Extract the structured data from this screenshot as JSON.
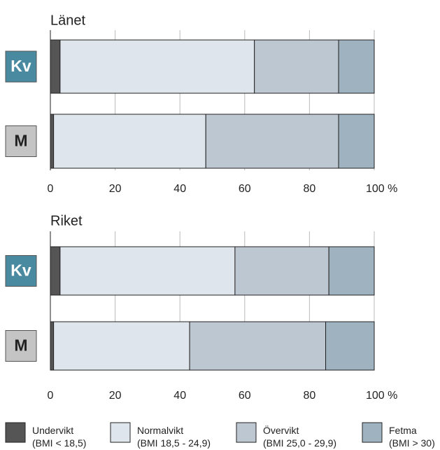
{
  "chart_data": [
    {
      "type": "stacked-bar-horizontal",
      "title": "Länet",
      "categories": [
        "Kv",
        "M"
      ],
      "series": [
        {
          "name": "Undervikt",
          "description": "(BMI < 18,5)",
          "color": "#555555",
          "values": [
            3,
            1
          ]
        },
        {
          "name": "Normalvikt",
          "description": "(BMI 18,5 - 24,9)",
          "color": "#dfe5ec",
          "values": [
            60,
            47
          ]
        },
        {
          "name": "Övervikt",
          "description": "(BMI 25,0 - 29,9)",
          "color": "#bdc7d1",
          "values": [
            26,
            41
          ]
        },
        {
          "name": "Fetma",
          "description": "(BMI > 30)",
          "color": "#9fb2bf",
          "values": [
            11,
            11
          ]
        }
      ],
      "xlim": [
        0,
        100
      ],
      "xticks": [
        0,
        20,
        40,
        60,
        80,
        {
          "value": 100,
          "label": "100 %"
        }
      ],
      "grid": true
    },
    {
      "type": "stacked-bar-horizontal",
      "title": "Riket",
      "categories": [
        "Kv",
        "M"
      ],
      "series": [
        {
          "name": "Undervikt",
          "color": "#555555",
          "values": [
            3,
            1
          ]
        },
        {
          "name": "Normalvikt",
          "color": "#dfe5ec",
          "values": [
            54,
            42
          ]
        },
        {
          "name": "Övervikt",
          "color": "#bdc7d1",
          "values": [
            29,
            42
          ]
        },
        {
          "name": "Fetma",
          "color": "#9fb2bf",
          "values": [
            14,
            15
          ]
        }
      ],
      "xlim": [
        0,
        100
      ],
      "xticks": [
        0,
        20,
        40,
        60,
        80,
        {
          "value": 100,
          "label": "100 %"
        }
      ],
      "grid": true
    }
  ]
}
